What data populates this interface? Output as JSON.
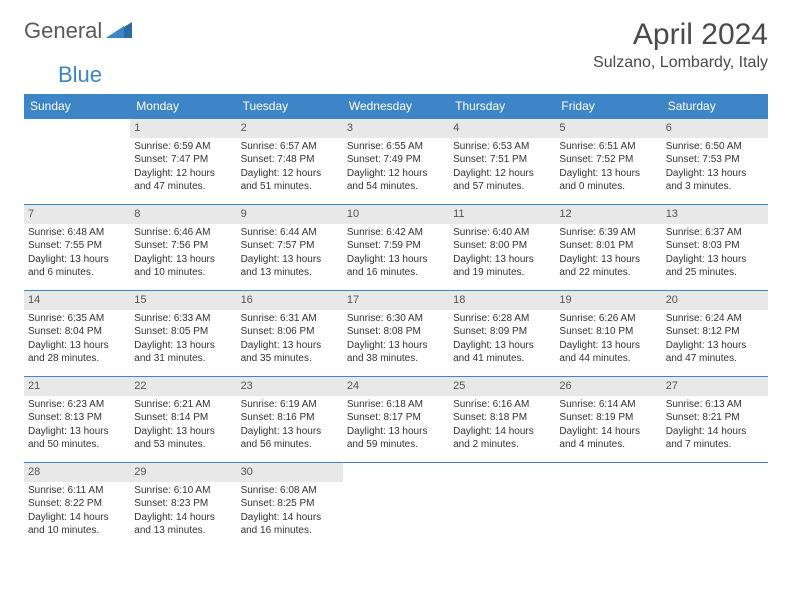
{
  "logo": {
    "word1": "General",
    "word2": "Blue",
    "word1_color": "#6b6b6b",
    "word2_color": "#3d85c6"
  },
  "title": "April 2024",
  "location": "Sulzano, Lombardy, Italy",
  "header_bg": "#3d85c6",
  "weekdays": [
    "Sunday",
    "Monday",
    "Tuesday",
    "Wednesday",
    "Thursday",
    "Friday",
    "Saturday"
  ],
  "days": [
    {
      "n": "",
      "sr": "",
      "ss": "",
      "dl1": "",
      "dl2": ""
    },
    {
      "n": "1",
      "sr": "Sunrise: 6:59 AM",
      "ss": "Sunset: 7:47 PM",
      "dl1": "Daylight: 12 hours",
      "dl2": "and 47 minutes."
    },
    {
      "n": "2",
      "sr": "Sunrise: 6:57 AM",
      "ss": "Sunset: 7:48 PM",
      "dl1": "Daylight: 12 hours",
      "dl2": "and 51 minutes."
    },
    {
      "n": "3",
      "sr": "Sunrise: 6:55 AM",
      "ss": "Sunset: 7:49 PM",
      "dl1": "Daylight: 12 hours",
      "dl2": "and 54 minutes."
    },
    {
      "n": "4",
      "sr": "Sunrise: 6:53 AM",
      "ss": "Sunset: 7:51 PM",
      "dl1": "Daylight: 12 hours",
      "dl2": "and 57 minutes."
    },
    {
      "n": "5",
      "sr": "Sunrise: 6:51 AM",
      "ss": "Sunset: 7:52 PM",
      "dl1": "Daylight: 13 hours",
      "dl2": "and 0 minutes."
    },
    {
      "n": "6",
      "sr": "Sunrise: 6:50 AM",
      "ss": "Sunset: 7:53 PM",
      "dl1": "Daylight: 13 hours",
      "dl2": "and 3 minutes."
    },
    {
      "n": "7",
      "sr": "Sunrise: 6:48 AM",
      "ss": "Sunset: 7:55 PM",
      "dl1": "Daylight: 13 hours",
      "dl2": "and 6 minutes."
    },
    {
      "n": "8",
      "sr": "Sunrise: 6:46 AM",
      "ss": "Sunset: 7:56 PM",
      "dl1": "Daylight: 13 hours",
      "dl2": "and 10 minutes."
    },
    {
      "n": "9",
      "sr": "Sunrise: 6:44 AM",
      "ss": "Sunset: 7:57 PM",
      "dl1": "Daylight: 13 hours",
      "dl2": "and 13 minutes."
    },
    {
      "n": "10",
      "sr": "Sunrise: 6:42 AM",
      "ss": "Sunset: 7:59 PM",
      "dl1": "Daylight: 13 hours",
      "dl2": "and 16 minutes."
    },
    {
      "n": "11",
      "sr": "Sunrise: 6:40 AM",
      "ss": "Sunset: 8:00 PM",
      "dl1": "Daylight: 13 hours",
      "dl2": "and 19 minutes."
    },
    {
      "n": "12",
      "sr": "Sunrise: 6:39 AM",
      "ss": "Sunset: 8:01 PM",
      "dl1": "Daylight: 13 hours",
      "dl2": "and 22 minutes."
    },
    {
      "n": "13",
      "sr": "Sunrise: 6:37 AM",
      "ss": "Sunset: 8:03 PM",
      "dl1": "Daylight: 13 hours",
      "dl2": "and 25 minutes."
    },
    {
      "n": "14",
      "sr": "Sunrise: 6:35 AM",
      "ss": "Sunset: 8:04 PM",
      "dl1": "Daylight: 13 hours",
      "dl2": "and 28 minutes."
    },
    {
      "n": "15",
      "sr": "Sunrise: 6:33 AM",
      "ss": "Sunset: 8:05 PM",
      "dl1": "Daylight: 13 hours",
      "dl2": "and 31 minutes."
    },
    {
      "n": "16",
      "sr": "Sunrise: 6:31 AM",
      "ss": "Sunset: 8:06 PM",
      "dl1": "Daylight: 13 hours",
      "dl2": "and 35 minutes."
    },
    {
      "n": "17",
      "sr": "Sunrise: 6:30 AM",
      "ss": "Sunset: 8:08 PM",
      "dl1": "Daylight: 13 hours",
      "dl2": "and 38 minutes."
    },
    {
      "n": "18",
      "sr": "Sunrise: 6:28 AM",
      "ss": "Sunset: 8:09 PM",
      "dl1": "Daylight: 13 hours",
      "dl2": "and 41 minutes."
    },
    {
      "n": "19",
      "sr": "Sunrise: 6:26 AM",
      "ss": "Sunset: 8:10 PM",
      "dl1": "Daylight: 13 hours",
      "dl2": "and 44 minutes."
    },
    {
      "n": "20",
      "sr": "Sunrise: 6:24 AM",
      "ss": "Sunset: 8:12 PM",
      "dl1": "Daylight: 13 hours",
      "dl2": "and 47 minutes."
    },
    {
      "n": "21",
      "sr": "Sunrise: 6:23 AM",
      "ss": "Sunset: 8:13 PM",
      "dl1": "Daylight: 13 hours",
      "dl2": "and 50 minutes."
    },
    {
      "n": "22",
      "sr": "Sunrise: 6:21 AM",
      "ss": "Sunset: 8:14 PM",
      "dl1": "Daylight: 13 hours",
      "dl2": "and 53 minutes."
    },
    {
      "n": "23",
      "sr": "Sunrise: 6:19 AM",
      "ss": "Sunset: 8:16 PM",
      "dl1": "Daylight: 13 hours",
      "dl2": "and 56 minutes."
    },
    {
      "n": "24",
      "sr": "Sunrise: 6:18 AM",
      "ss": "Sunset: 8:17 PM",
      "dl1": "Daylight: 13 hours",
      "dl2": "and 59 minutes."
    },
    {
      "n": "25",
      "sr": "Sunrise: 6:16 AM",
      "ss": "Sunset: 8:18 PM",
      "dl1": "Daylight: 14 hours",
      "dl2": "and 2 minutes."
    },
    {
      "n": "26",
      "sr": "Sunrise: 6:14 AM",
      "ss": "Sunset: 8:19 PM",
      "dl1": "Daylight: 14 hours",
      "dl2": "and 4 minutes."
    },
    {
      "n": "27",
      "sr": "Sunrise: 6:13 AM",
      "ss": "Sunset: 8:21 PM",
      "dl1": "Daylight: 14 hours",
      "dl2": "and 7 minutes."
    },
    {
      "n": "28",
      "sr": "Sunrise: 6:11 AM",
      "ss": "Sunset: 8:22 PM",
      "dl1": "Daylight: 14 hours",
      "dl2": "and 10 minutes."
    },
    {
      "n": "29",
      "sr": "Sunrise: 6:10 AM",
      "ss": "Sunset: 8:23 PM",
      "dl1": "Daylight: 14 hours",
      "dl2": "and 13 minutes."
    },
    {
      "n": "30",
      "sr": "Sunrise: 6:08 AM",
      "ss": "Sunset: 8:25 PM",
      "dl1": "Daylight: 14 hours",
      "dl2": "and 16 minutes."
    },
    {
      "n": "",
      "sr": "",
      "ss": "",
      "dl1": "",
      "dl2": ""
    },
    {
      "n": "",
      "sr": "",
      "ss": "",
      "dl1": "",
      "dl2": ""
    },
    {
      "n": "",
      "sr": "",
      "ss": "",
      "dl1": "",
      "dl2": ""
    },
    {
      "n": "",
      "sr": "",
      "ss": "",
      "dl1": "",
      "dl2": ""
    }
  ]
}
